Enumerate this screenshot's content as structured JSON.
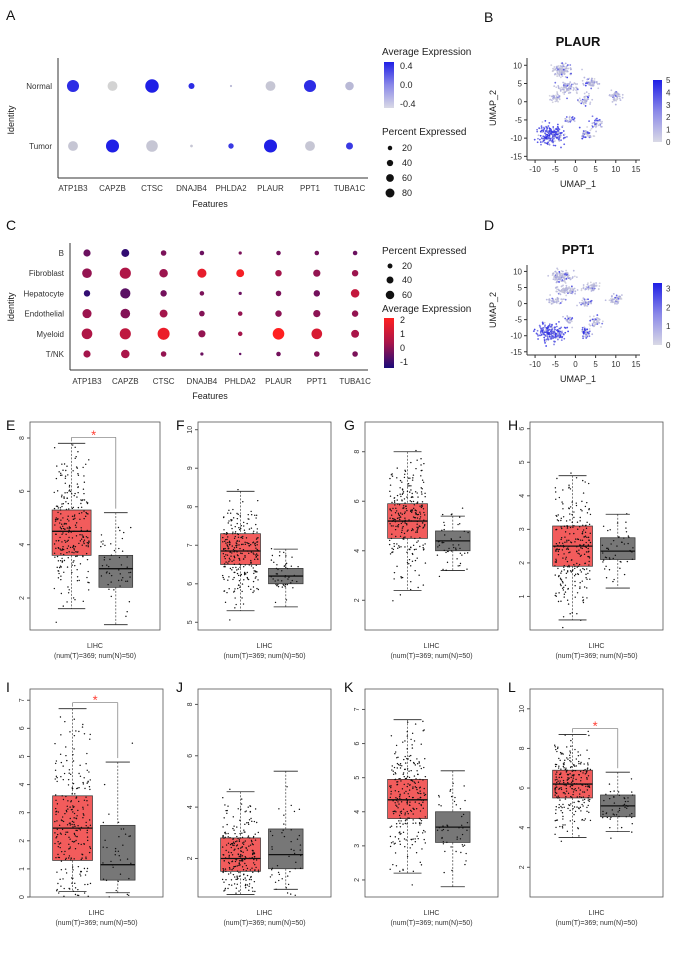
{
  "panels": {
    "A": {
      "label": "A"
    },
    "B": {
      "label": "B"
    },
    "C": {
      "label": "C"
    },
    "D": {
      "label": "D"
    },
    "E": {
      "label": "E"
    },
    "F": {
      "label": "F"
    },
    "G": {
      "label": "G"
    },
    "H": {
      "label": "H"
    },
    "I": {
      "label": "I"
    },
    "J": {
      "label": "J"
    },
    "K": {
      "label": "K"
    },
    "L": {
      "label": "L"
    }
  },
  "colors": {
    "low": "#d3d3d3",
    "high": "#1f1fe6",
    "dot_low": "#1a0b7a",
    "dot_mid": "#a8154a",
    "dot_high": "#ff2020",
    "tumor_box": "#f25c5c",
    "normal_box": "#777777",
    "sig_star": "#ff3b30"
  },
  "chart_data": [
    {
      "id": "A",
      "type": "scatter",
      "subtype": "dotplot",
      "ylabel": "Identity",
      "xlabel": "Features",
      "categories": [
        "ATP1B3",
        "CAPZB",
        "CTSC",
        "DNAJB4",
        "PHLDA2",
        "PLAUR",
        "PPT1",
        "TUBA1C"
      ],
      "groups": [
        "Normal",
        "Tumor"
      ],
      "series": [
        {
          "name": "Normal",
          "pct": [
            60,
            40,
            75,
            15,
            2,
            40,
            60,
            30
          ],
          "avg": [
            0.6,
            -0.7,
            0.7,
            0.6,
            -0.5,
            -0.6,
            0.6,
            -0.5
          ]
        },
        {
          "name": "Tumor",
          "pct": [
            40,
            70,
            55,
            3,
            12,
            70,
            40,
            20
          ],
          "avg": [
            -0.6,
            0.7,
            -0.6,
            -0.6,
            0.5,
            0.7,
            -0.6,
            0.5
          ]
        }
      ],
      "legend_color": {
        "title": "Average Expression",
        "ticks": [
          "0.4",
          "0.0",
          "-0.4"
        ],
        "range": [
          -0.7,
          0.7
        ]
      },
      "legend_size": {
        "title": "Percent Expressed",
        "ticks": [
          "20",
          "40",
          "60",
          "80"
        ]
      }
    },
    {
      "id": "B",
      "type": "scatter",
      "subtype": "umap",
      "title": "PLAUR",
      "xlabel": "UMAP_1",
      "ylabel": "UMAP_2",
      "xlim": [
        -12,
        16
      ],
      "ylim": [
        -16,
        12
      ],
      "xticks": [
        "-10",
        "-5",
        "0",
        "5",
        "10",
        "15"
      ],
      "yticks": [
        "10",
        "5",
        "0",
        "-5",
        "-10",
        "-15"
      ],
      "scale_ticks": [
        "5",
        "4",
        "3",
        "2",
        "1",
        "0"
      ],
      "scale_max": 5
    },
    {
      "id": "C",
      "type": "scatter",
      "subtype": "dotplot",
      "ylabel": "Identity",
      "xlabel": "Features",
      "categories": [
        "ATP1B3",
        "CAPZB",
        "CTSC",
        "DNAJB4",
        "PHLDA2",
        "PLAUR",
        "PPT1",
        "TUBA1C"
      ],
      "groups": [
        "B",
        "Fibroblast",
        "Hepatocyte",
        "Endothelial",
        "Myeloid",
        "T/NK"
      ],
      "series": [
        {
          "name": "B",
          "pct": [
            25,
            30,
            15,
            10,
            5,
            10,
            10,
            10
          ],
          "avg": [
            -0.5,
            -1.2,
            -0.3,
            -0.5,
            -0.3,
            -0.4,
            -0.4,
            -0.5
          ]
        },
        {
          "name": "Fibroblast",
          "pct": [
            45,
            60,
            35,
            40,
            30,
            20,
            25,
            20
          ],
          "avg": [
            0.0,
            0.4,
            0.1,
            1.5,
            1.8,
            0.2,
            0.0,
            0.1
          ]
        },
        {
          "name": "Hepatocyte",
          "pct": [
            20,
            50,
            20,
            10,
            5,
            15,
            20,
            35
          ],
          "avg": [
            -1.2,
            -0.7,
            -0.4,
            -0.3,
            -0.5,
            -0.3,
            -0.4,
            0.8
          ]
        },
        {
          "name": "Endothelial",
          "pct": [
            40,
            45,
            30,
            15,
            10,
            20,
            25,
            20
          ],
          "avg": [
            0.1,
            -0.2,
            0.2,
            -0.2,
            0.0,
            -0.1,
            -0.1,
            0.0
          ]
        },
        {
          "name": "Myeloid",
          "pct": [
            55,
            60,
            70,
            25,
            10,
            65,
            55,
            30
          ],
          "avg": [
            0.4,
            0.7,
            1.6,
            0.0,
            0.2,
            2.0,
            1.2,
            0.3
          ]
        },
        {
          "name": "T/NK",
          "pct": [
            25,
            35,
            15,
            5,
            3,
            10,
            15,
            15
          ],
          "avg": [
            0.2,
            0.3,
            0.0,
            -0.5,
            -0.6,
            -0.4,
            -0.2,
            -0.3
          ]
        }
      ],
      "legend_size": {
        "title": "Percent Expressed",
        "ticks": [
          "20",
          "40",
          "60"
        ]
      },
      "legend_color": {
        "title": "Average Expression",
        "ticks": [
          "2",
          "1",
          "0",
          "-1"
        ],
        "range": [
          -1.5,
          2
        ]
      }
    },
    {
      "id": "D",
      "type": "scatter",
      "subtype": "umap",
      "title": "PPT1",
      "xlabel": "UMAP_1",
      "ylabel": "UMAP_2",
      "xlim": [
        -12,
        16
      ],
      "ylim": [
        -16,
        12
      ],
      "xticks": [
        "-10",
        "-5",
        "0",
        "5",
        "10",
        "15"
      ],
      "yticks": [
        "10",
        "5",
        "0",
        "-5",
        "-10",
        "-15"
      ],
      "scale_ticks": [
        "3",
        "2",
        "1",
        "0"
      ],
      "scale_max": 3.3
    },
    {
      "id": "E",
      "type": "bar",
      "subtype": "boxplot",
      "xlabel": "LIHC",
      "xsub": "(num(T)=369; num(N)=50)",
      "ylim": [
        0.8,
        8.6
      ],
      "yticks": [
        2,
        4,
        6,
        8
      ],
      "sig": true,
      "tumor": {
        "min": 1.6,
        "q1": 3.6,
        "median": 4.5,
        "q3": 5.3,
        "max": 7.8
      },
      "normal": {
        "min": 1.0,
        "q1": 2.4,
        "median": 3.1,
        "q3": 3.6,
        "max": 5.2
      }
    },
    {
      "id": "F",
      "type": "bar",
      "subtype": "boxplot",
      "xlabel": "LIHC",
      "xsub": "(num(T)=369; num(N)=50)",
      "ylim": [
        4.8,
        10.2
      ],
      "yticks": [
        5,
        6,
        7,
        8,
        9,
        10
      ],
      "sig": false,
      "tumor": {
        "min": 5.3,
        "q1": 6.5,
        "median": 6.85,
        "q3": 7.3,
        "max": 8.4
      },
      "normal": {
        "min": 5.4,
        "q1": 6.0,
        "median": 6.2,
        "q3": 6.4,
        "max": 6.9
      }
    },
    {
      "id": "G",
      "type": "bar",
      "subtype": "boxplot",
      "xlabel": "LIHC",
      "xsub": "(num(T)=369; num(N)=50)",
      "ylim": [
        0.8,
        9.2
      ],
      "yticks": [
        2,
        4,
        6,
        8
      ],
      "sig": false,
      "tumor": {
        "min": 2.4,
        "q1": 4.5,
        "median": 5.2,
        "q3": 5.9,
        "max": 8.0
      },
      "normal": {
        "min": 3.2,
        "q1": 4.0,
        "median": 4.4,
        "q3": 4.8,
        "max": 5.4
      }
    },
    {
      "id": "H",
      "type": "bar",
      "subtype": "boxplot",
      "xlabel": "LIHC",
      "xsub": "(num(T)=369; num(N)=50)",
      "ylim": [
        0,
        6.2
      ],
      "yticks": [
        1,
        2,
        3,
        4,
        5,
        6
      ],
      "sig": false,
      "tumor": {
        "min": 0.3,
        "q1": 1.9,
        "median": 2.5,
        "q3": 3.1,
        "max": 4.6
      },
      "normal": {
        "min": 1.25,
        "q1": 2.1,
        "median": 2.35,
        "q3": 2.75,
        "max": 3.45
      }
    },
    {
      "id": "I",
      "type": "bar",
      "subtype": "boxplot",
      "xlabel": "LIHC",
      "xsub": "(num(T)=369; num(N)=50)",
      "ylim": [
        0,
        7.4
      ],
      "yticks": [
        0,
        1,
        2,
        3,
        4,
        5,
        6,
        7
      ],
      "sig": true,
      "tumor": {
        "min": 0.2,
        "q1": 1.3,
        "median": 2.45,
        "q3": 3.6,
        "max": 6.7
      },
      "normal": {
        "min": 0.15,
        "q1": 0.6,
        "median": 1.15,
        "q3": 2.55,
        "max": 4.8
      }
    },
    {
      "id": "J",
      "type": "bar",
      "subtype": "boxplot",
      "xlabel": "LIHC",
      "xsub": "(num(T)=369; num(N)=50)",
      "ylim": [
        0.5,
        8.6
      ],
      "yticks": [
        2,
        4,
        6,
        8
      ],
      "sig": false,
      "tumor": {
        "min": 0.6,
        "q1": 1.5,
        "median": 2.0,
        "q3": 2.8,
        "max": 4.6
      },
      "normal": {
        "min": 0.8,
        "q1": 1.6,
        "median": 2.15,
        "q3": 3.15,
        "max": 5.4
      }
    },
    {
      "id": "K",
      "type": "bar",
      "subtype": "boxplot",
      "xlabel": "LIHC",
      "xsub": "(num(T)=369; num(N)=50)",
      "ylim": [
        1.5,
        7.6
      ],
      "yticks": [
        2,
        3,
        4,
        5,
        6,
        7
      ],
      "sig": false,
      "tumor": {
        "min": 2.2,
        "q1": 3.8,
        "median": 4.35,
        "q3": 4.95,
        "max": 6.7
      },
      "normal": {
        "min": 1.8,
        "q1": 3.1,
        "median": 3.55,
        "q3": 4.0,
        "max": 5.2
      }
    },
    {
      "id": "L",
      "type": "bar",
      "subtype": "boxplot",
      "xlabel": "LIHC",
      "xsub": "(num(T)=369; num(N)=50)",
      "ylim": [
        0.5,
        11
      ],
      "yticks": [
        2,
        4,
        6,
        8,
        10
      ],
      "sig": true,
      "tumor": {
        "min": 3.5,
        "q1": 5.5,
        "median": 6.2,
        "q3": 6.9,
        "max": 8.7
      },
      "normal": {
        "min": 3.8,
        "q1": 4.55,
        "median": 5.1,
        "q3": 5.65,
        "max": 6.8
      }
    }
  ],
  "sig_label": "*"
}
